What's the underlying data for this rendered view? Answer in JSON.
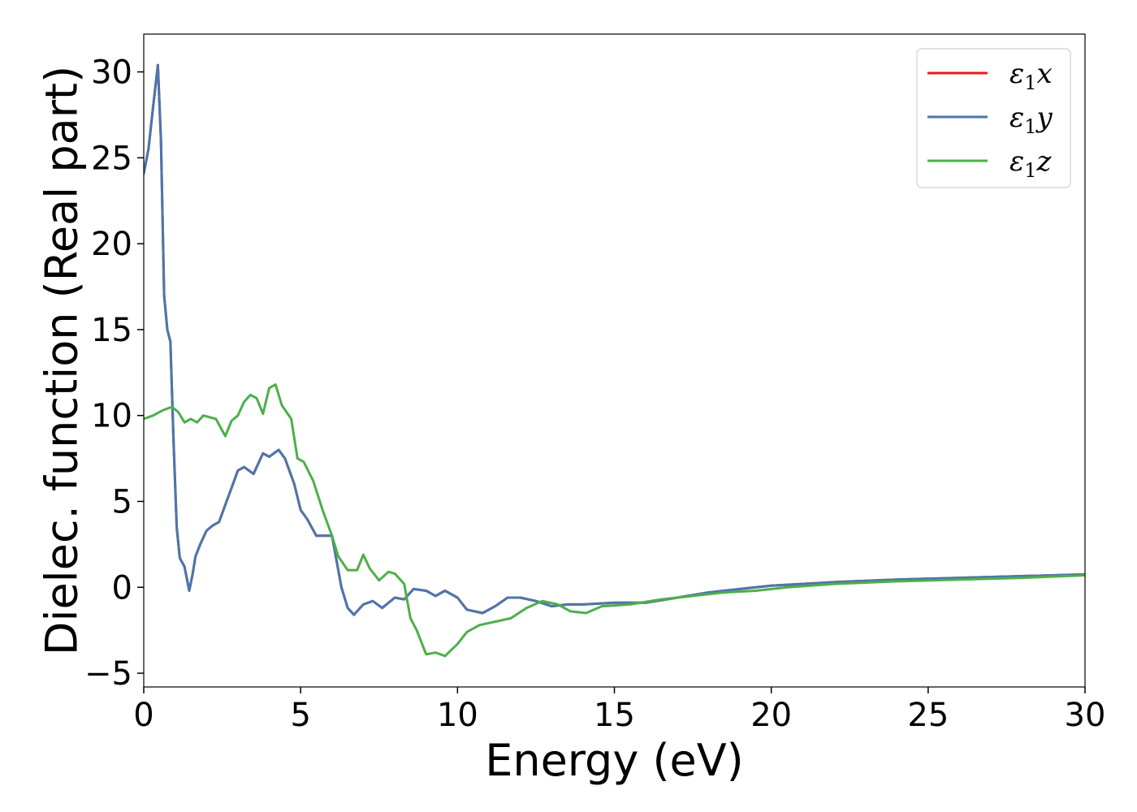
{
  "chart_data": {
    "type": "line",
    "title": "",
    "xlabel": "Energy (eV)",
    "ylabel": "Dielec. function (Real part)",
    "xlim": [
      0,
      30
    ],
    "ylim": [
      -5.8,
      32.2
    ],
    "xticks": [
      0,
      5,
      10,
      15,
      20,
      25,
      30
    ],
    "yticks": [
      -5,
      0,
      5,
      10,
      15,
      20,
      25,
      30
    ],
    "xtick_labels": [
      "0",
      "5",
      "10",
      "15",
      "20",
      "25",
      "30"
    ],
    "ytick_labels": [
      "−5",
      "0",
      "5",
      "10",
      "15",
      "20",
      "25",
      "30"
    ],
    "grid": false,
    "legend_position": "top-right",
    "series": [
      {
        "name": "ε1x",
        "label_base": "ε",
        "label_sub": "1",
        "label_comp": "x",
        "color": "#e41a1c",
        "x": [
          0,
          0.15,
          0.3,
          0.45,
          0.55,
          0.65,
          0.75,
          0.85,
          0.95,
          1.05,
          1.15,
          1.3,
          1.45,
          1.55,
          1.65,
          1.8,
          2.0,
          2.2,
          2.4,
          2.6,
          2.8,
          3.0,
          3.2,
          3.5,
          3.8,
          4.0,
          4.3,
          4.5,
          4.8,
          5.0,
          5.2,
          5.5,
          6.0,
          6.3,
          6.5,
          6.7,
          7.0,
          7.3,
          7.6,
          8.0,
          8.3,
          8.6,
          9.0,
          9.3,
          9.6,
          10.0,
          10.3,
          10.8,
          11.2,
          11.6,
          12.0,
          12.5,
          13.0,
          13.5,
          14.0,
          15.0,
          16.0,
          17.0,
          18.0,
          19.0,
          20.0,
          22.0,
          24.0,
          26.0,
          28.0,
          30.0
        ],
        "y": [
          24.1,
          25.5,
          28.0,
          30.4,
          26.0,
          17.0,
          15.0,
          14.3,
          8.5,
          3.5,
          1.7,
          1.2,
          -0.2,
          0.7,
          1.8,
          2.5,
          3.3,
          3.6,
          3.8,
          4.8,
          5.8,
          6.8,
          7.0,
          6.6,
          7.8,
          7.6,
          8.0,
          7.5,
          6.0,
          4.5,
          4.0,
          3.0,
          3.0,
          0.0,
          -1.2,
          -1.6,
          -1.0,
          -0.8,
          -1.2,
          -0.6,
          -0.7,
          -0.1,
          -0.2,
          -0.5,
          -0.2,
          -0.6,
          -1.3,
          -1.5,
          -1.1,
          -0.6,
          -0.6,
          -0.8,
          -1.1,
          -1.0,
          -1.0,
          -0.9,
          -0.9,
          -0.6,
          -0.3,
          -0.1,
          0.1,
          0.3,
          0.45,
          0.55,
          0.65,
          0.75
        ]
      },
      {
        "name": "ε1y",
        "label_base": "ε",
        "label_sub": "1",
        "label_comp": "y",
        "color": "#4a77ac",
        "x": [
          0,
          0.15,
          0.3,
          0.45,
          0.55,
          0.65,
          0.75,
          0.85,
          0.95,
          1.05,
          1.15,
          1.3,
          1.45,
          1.55,
          1.65,
          1.8,
          2.0,
          2.2,
          2.4,
          2.6,
          2.8,
          3.0,
          3.2,
          3.5,
          3.8,
          4.0,
          4.3,
          4.5,
          4.8,
          5.0,
          5.2,
          5.5,
          6.0,
          6.3,
          6.5,
          6.7,
          7.0,
          7.3,
          7.6,
          8.0,
          8.3,
          8.6,
          9.0,
          9.3,
          9.6,
          10.0,
          10.3,
          10.8,
          11.2,
          11.6,
          12.0,
          12.5,
          13.0,
          13.5,
          14.0,
          15.0,
          16.0,
          17.0,
          18.0,
          19.0,
          20.0,
          22.0,
          24.0,
          26.0,
          28.0,
          30.0
        ],
        "y": [
          24.1,
          25.5,
          28.0,
          30.4,
          26.0,
          17.0,
          15.0,
          14.3,
          8.5,
          3.5,
          1.7,
          1.2,
          -0.2,
          0.7,
          1.8,
          2.5,
          3.3,
          3.6,
          3.8,
          4.8,
          5.8,
          6.8,
          7.0,
          6.6,
          7.8,
          7.6,
          8.0,
          7.5,
          6.0,
          4.5,
          4.0,
          3.0,
          3.0,
          0.0,
          -1.2,
          -1.6,
          -1.0,
          -0.8,
          -1.2,
          -0.6,
          -0.7,
          -0.1,
          -0.2,
          -0.5,
          -0.2,
          -0.6,
          -1.3,
          -1.5,
          -1.1,
          -0.6,
          -0.6,
          -0.8,
          -1.1,
          -1.0,
          -1.0,
          -0.9,
          -0.9,
          -0.6,
          -0.3,
          -0.1,
          0.1,
          0.3,
          0.45,
          0.55,
          0.65,
          0.75
        ]
      },
      {
        "name": "ε1z",
        "label_base": "ε",
        "label_sub": "1",
        "label_comp": "z",
        "color": "#4daf4a",
        "x": [
          0,
          0.3,
          0.6,
          0.9,
          1.1,
          1.3,
          1.5,
          1.7,
          1.9,
          2.1,
          2.3,
          2.6,
          2.8,
          3.0,
          3.2,
          3.4,
          3.6,
          3.8,
          4.0,
          4.2,
          4.4,
          4.7,
          4.9,
          5.1,
          5.4,
          5.7,
          6.0,
          6.2,
          6.5,
          6.8,
          7.0,
          7.2,
          7.5,
          7.8,
          8.0,
          8.3,
          8.5,
          8.7,
          9.0,
          9.3,
          9.6,
          10.0,
          10.3,
          10.7,
          11.2,
          11.7,
          12.2,
          12.7,
          13.2,
          13.6,
          14.1,
          14.6,
          15.5,
          16.5,
          17.5,
          18.5,
          19.5,
          20.5,
          22.0,
          24.0,
          26.0,
          28.0,
          30.0
        ],
        "y": [
          9.8,
          10.0,
          10.3,
          10.5,
          10.2,
          9.6,
          9.8,
          9.6,
          10.0,
          9.9,
          9.8,
          8.8,
          9.7,
          10.0,
          10.8,
          11.2,
          11.0,
          10.1,
          11.6,
          11.8,
          10.6,
          9.8,
          7.5,
          7.3,
          6.2,
          4.5,
          3.0,
          1.8,
          1.0,
          1.0,
          1.9,
          1.1,
          0.4,
          0.9,
          0.8,
          0.2,
          -1.8,
          -2.5,
          -3.9,
          -3.8,
          -4.0,
          -3.3,
          -2.6,
          -2.2,
          -2.0,
          -1.8,
          -1.2,
          -0.8,
          -1.0,
          -1.4,
          -1.5,
          -1.1,
          -1.0,
          -0.7,
          -0.5,
          -0.3,
          -0.2,
          0.0,
          0.2,
          0.35,
          0.45,
          0.55,
          0.7
        ]
      }
    ]
  }
}
